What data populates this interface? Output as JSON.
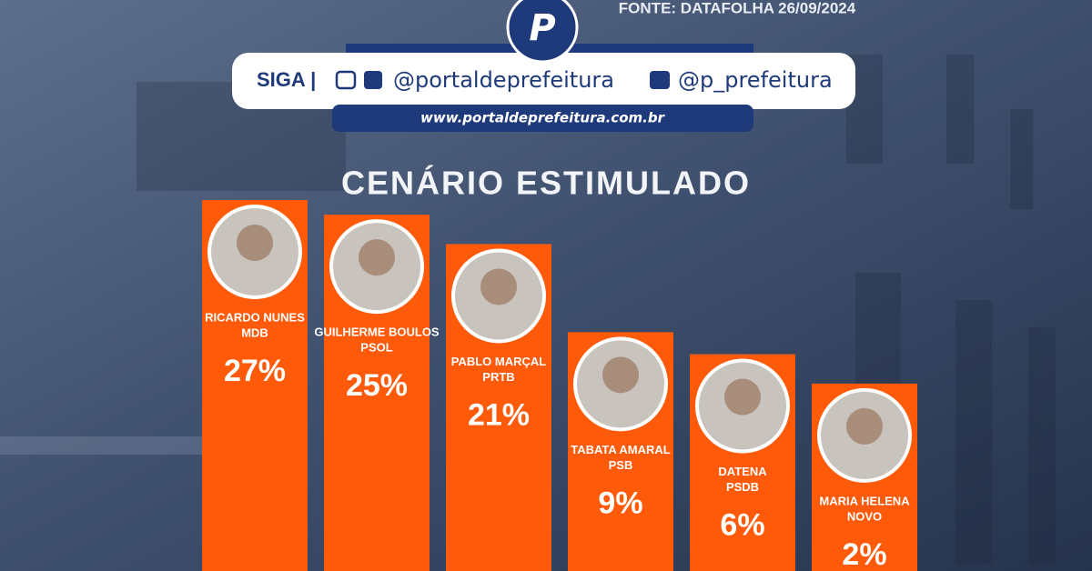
{
  "source": "FONTE: DATAFOLHA 26/09/2024",
  "header": {
    "follow": "SIGA |",
    "instagram_facebook": "@portaldeprefeitura",
    "twitter": "@p_prefeitura",
    "website": "www.portaldeprefeitura.com.br"
  },
  "chart_data": {
    "type": "bar",
    "title": "CENÁRIO ESTIMULADO",
    "categories": [
      "RICARDO NUNES",
      "GUILHERME BOULOS",
      "PABLO MARÇAL",
      "TABATA AMARAL",
      "DATENA",
      "MARIA HELENA"
    ],
    "parties": [
      "MDB",
      "PSOL",
      "PRTB",
      "PSB",
      "PSDB",
      "NOVO"
    ],
    "values": [
      27,
      25,
      21,
      9,
      6,
      2
    ],
    "value_labels": [
      "27%",
      "25%",
      "21%",
      "9%",
      "6%",
      "2%"
    ],
    "color": "#ff5a0a"
  }
}
